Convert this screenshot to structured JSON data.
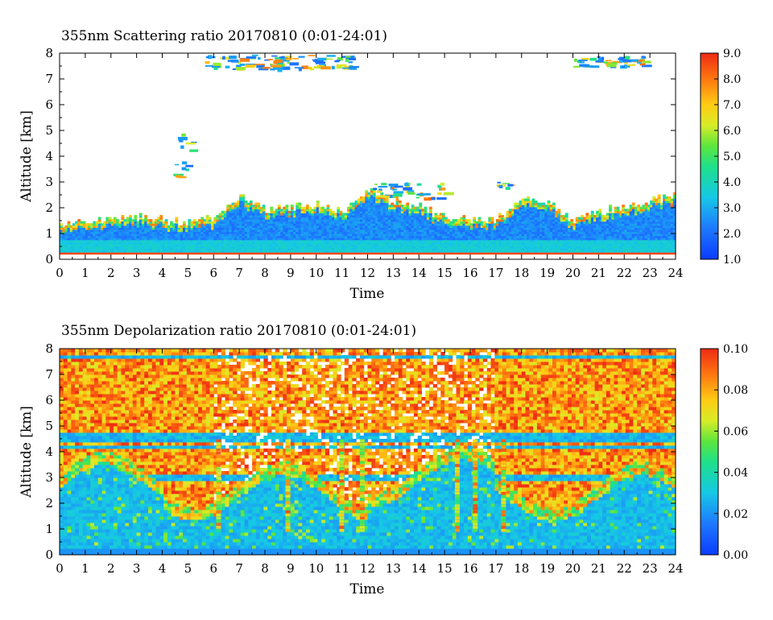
{
  "chart_data": [
    {
      "type": "heatmap",
      "title": "355nm Scattering ratio  20170810 (0:01-24:01)",
      "xlabel": "Time",
      "ylabel": "Altitude [km]",
      "xlim": [
        0,
        24
      ],
      "ylim": [
        0,
        8
      ],
      "xticks": [
        "0",
        "1",
        "2",
        "3",
        "4",
        "5",
        "6",
        "7",
        "8",
        "9",
        "10",
        "11",
        "12",
        "13",
        "14",
        "15",
        "16",
        "17",
        "18",
        "19",
        "20",
        "21",
        "22",
        "23",
        "24"
      ],
      "yticks": [
        "0",
        "1",
        "2",
        "3",
        "4",
        "5",
        "6",
        "7",
        "8"
      ],
      "colorbar": {
        "min": 1.0,
        "max": 9.0,
        "ticks": [
          "1.0",
          "2.0",
          "3.0",
          "4.0",
          "5.0",
          "6.0",
          "7.0",
          "8.0",
          "9.0"
        ]
      },
      "features": {
        "boundary_layer_top_km": [
          1.3,
          1.4,
          1.6,
          1.6,
          1.5,
          1.4,
          1.6,
          2.4,
          1.9,
          2.0,
          2.1,
          1.8,
          2.6,
          2.2,
          2.0,
          1.6,
          1.5,
          1.5,
          2.4,
          2.2,
          1.4,
          1.8,
          2.0,
          2.3,
          2.4
        ],
        "cloud_patches": [
          {
            "t": [
              4.3,
              5.2
            ],
            "alt_km": [
              3.2,
              5.0
            ]
          },
          {
            "t": [
              12.2,
              15.0
            ],
            "alt_km": [
              2.4,
              3.0
            ]
          },
          {
            "t": [
              17.0,
              17.5
            ],
            "alt_km": [
              2.8,
              3.1
            ]
          },
          {
            "t": [
              5.6,
              11.5
            ],
            "alt_km": [
              7.4,
              7.95
            ]
          },
          {
            "t": [
              20.0,
              22.8
            ],
            "alt_km": [
              7.5,
              7.9
            ]
          }
        ]
      }
    },
    {
      "type": "heatmap",
      "title": "355nm Depolarization ratio  20170810 (0:01-24:01)",
      "xlabel": "Time",
      "ylabel": "Altitude [km]",
      "xlim": [
        0,
        24
      ],
      "ylim": [
        0,
        8
      ],
      "xticks": [
        "0",
        "1",
        "2",
        "3",
        "4",
        "5",
        "6",
        "7",
        "8",
        "9",
        "10",
        "11",
        "12",
        "13",
        "14",
        "15",
        "16",
        "17",
        "18",
        "19",
        "20",
        "21",
        "22",
        "23",
        "24"
      ],
      "yticks": [
        "0",
        "1",
        "2",
        "3",
        "4",
        "5",
        "6",
        "7",
        "8"
      ],
      "colorbar": {
        "min": 0.0,
        "max": 0.1,
        "ticks": [
          "0.00",
          "0.02",
          "0.04",
          "0.06",
          "0.08",
          "0.10"
        ]
      }
    }
  ]
}
